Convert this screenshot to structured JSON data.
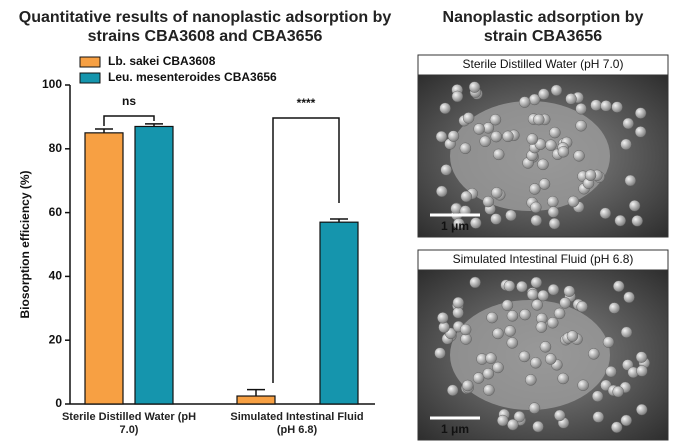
{
  "chart_data": {
    "type": "bar",
    "title": "Quantitative results of nanoplastic adsorption by strains CBA3608 and CBA3656",
    "categories": [
      "Sterile Distilled Water (pH 7.0)",
      "Simulated Intestinal Fluid (pH 6.8)"
    ],
    "series": [
      {
        "name": "Lb. sakei CBA3608",
        "color": "#f7a043",
        "values": [
          85,
          2.5
        ],
        "errors": [
          1.2,
          2
        ]
      },
      {
        "name": "Leu. mesenteroides CBA3656",
        "color": "#1595ad",
        "values": [
          87,
          57
        ],
        "errors": [
          0.8,
          1
        ]
      }
    ],
    "ylabel": "Biosorption efficiency (%)",
    "ylim": [
      0,
      100
    ],
    "yticks": [
      0,
      20,
      40,
      60,
      80,
      100
    ],
    "annotations": [
      "ns",
      "****"
    ]
  },
  "panel": {
    "title": "Nanoplastic adsorption by strain CBA3656",
    "images": [
      {
        "label": "Sterile Distilled Water (pH 7.0)",
        "scale": "1 μm"
      },
      {
        "label": "Simulated Intestinal Fluid (pH 6.8)",
        "scale": "1 μm"
      }
    ]
  }
}
